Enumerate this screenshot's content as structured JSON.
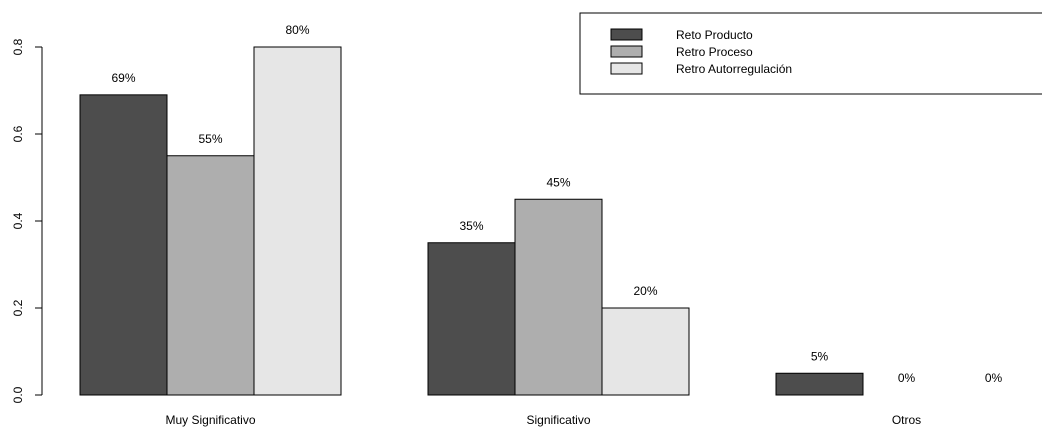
{
  "chart_data": {
    "type": "bar",
    "categories": [
      "Muy Significativo",
      "Significativo",
      "Otros"
    ],
    "series": [
      {
        "name": "Reto Producto",
        "values": [
          0.69,
          0.35,
          0.05
        ],
        "labels": [
          "69%",
          "35%",
          "5%"
        ],
        "color": "#4d4d4d"
      },
      {
        "name": "Retro Proceso",
        "values": [
          0.55,
          0.45,
          0.0
        ],
        "labels": [
          "55%",
          "45%",
          "0%"
        ],
        "color": "#aeaeae"
      },
      {
        "name": "Retro Autorregulación",
        "values": [
          0.8,
          0.2,
          0.0
        ],
        "labels": [
          "80%",
          "20%",
          "0%"
        ],
        "color": "#e6e6e6"
      }
    ],
    "yticks": [
      "0.0",
      "0.2",
      "0.4",
      "0.6",
      "0.8"
    ],
    "ylim": [
      0,
      0.8
    ],
    "grid": false,
    "legend_position": "top-right"
  }
}
